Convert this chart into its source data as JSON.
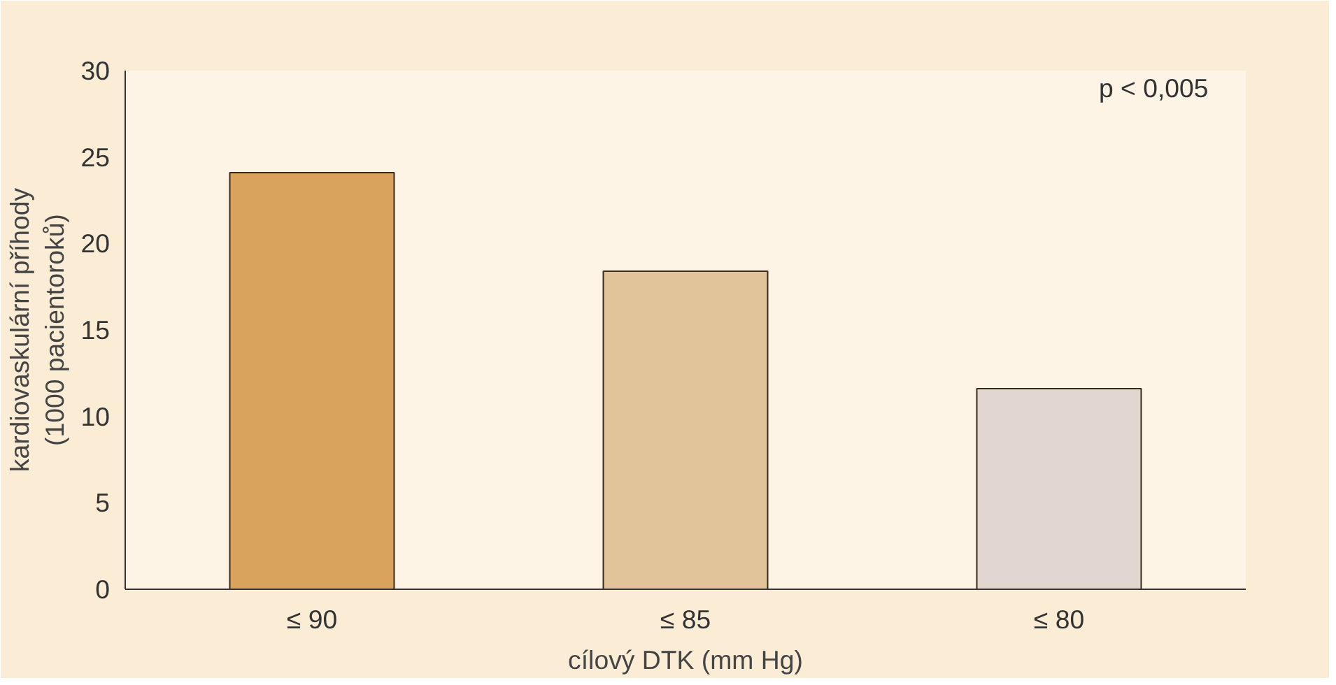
{
  "chart_data": {
    "type": "bar",
    "categories": [
      "≤ 90",
      "≤ 85",
      "≤ 80"
    ],
    "values": [
      24.1,
      18.4,
      11.6
    ],
    "colors": [
      "#d9a35e",
      "#e2c49a",
      "#e2d6d0"
    ],
    "ylim": [
      0,
      30
    ],
    "yticks": [
      0,
      5,
      10,
      15,
      20,
      25,
      30
    ],
    "xlabel": "cílový DTK (mm Hg)",
    "ylabel": "kardiovaskulární příhody\n(1000 pacientoroků)",
    "annotations": [
      "p < 0,005"
    ],
    "grid": false
  }
}
